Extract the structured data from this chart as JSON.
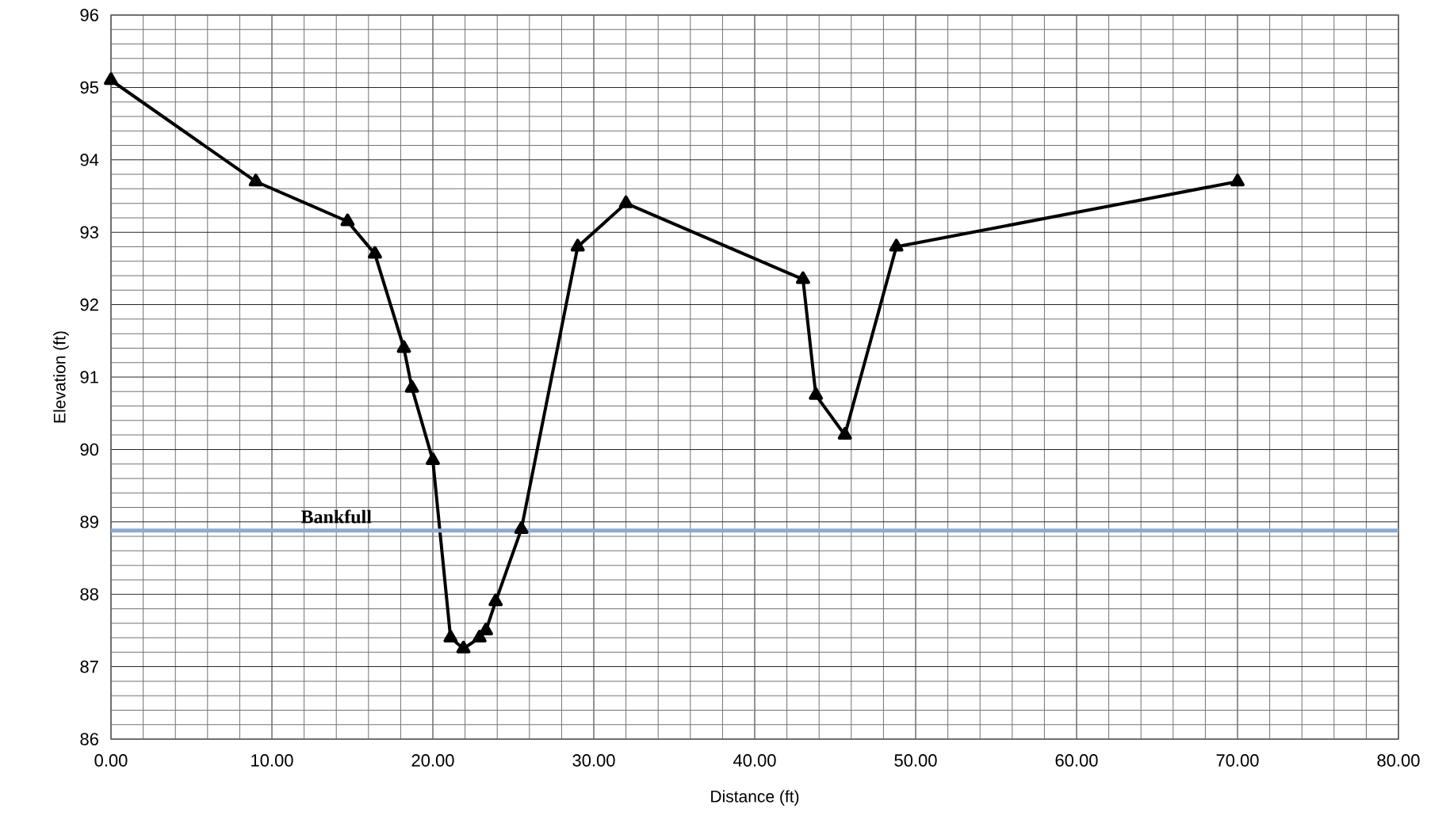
{
  "chart_data": {
    "type": "line",
    "xlabel": "Distance (ft)",
    "ylabel": "Elevation (ft)",
    "xlim": [
      0,
      80
    ],
    "ylim": [
      86,
      96
    ],
    "xticks": [
      {
        "value": 0,
        "label": "0.00"
      },
      {
        "value": 10,
        "label": "10.00"
      },
      {
        "value": 20,
        "label": "20.00"
      },
      {
        "value": 30,
        "label": "30.00"
      },
      {
        "value": 40,
        "label": "40.00"
      },
      {
        "value": 50,
        "label": "50.00"
      },
      {
        "value": 60,
        "label": "60.00"
      },
      {
        "value": 70,
        "label": "70.00"
      },
      {
        "value": 80,
        "label": "80.00"
      }
    ],
    "yticks": [
      86,
      87,
      88,
      89,
      90,
      91,
      92,
      93,
      94,
      95,
      96
    ],
    "grid": true,
    "marker": "triangle",
    "line_style": "solid",
    "series": [
      {
        "color": "#000000",
        "x": [
          0,
          9.0,
          14.7,
          16.4,
          18.2,
          18.7,
          20.0,
          21.1,
          21.9,
          22.9,
          23.3,
          23.9,
          25.5,
          29.0,
          32.0,
          43.0,
          43.8,
          45.6,
          48.8,
          70.0
        ],
        "values": [
          95.1,
          93.7,
          93.15,
          92.7,
          91.4,
          90.85,
          89.85,
          87.4,
          87.25,
          87.4,
          87.5,
          87.9,
          88.9,
          92.8,
          93.4,
          92.35,
          90.75,
          90.2,
          92.8,
          93.7
        ]
      }
    ],
    "ref_lines": [
      {
        "axis": "y",
        "value": 88.88,
        "label": "Bankfull",
        "color": "#8eaad0"
      }
    ]
  }
}
